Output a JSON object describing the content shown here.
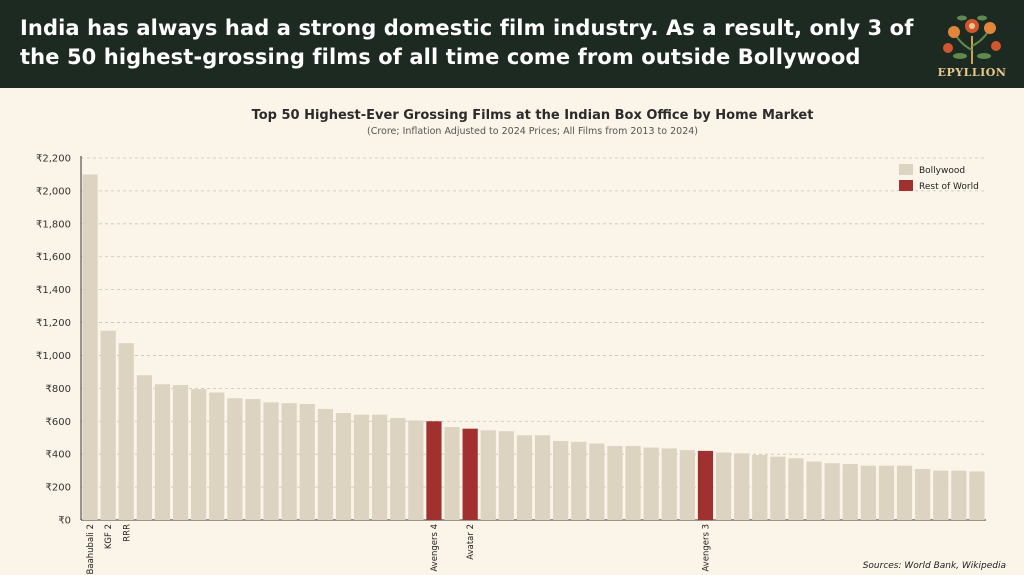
{
  "header": {
    "headline": "India has always had a strong domestic film industry. As a result, only 3 of the 50 highest-grossing films of all time come from outside Bollywood",
    "brand": "EPYLLION",
    "logo_icon": "floral-tree-icon"
  },
  "source": "Sources: World Bank, Wikipedia",
  "colors": {
    "bollywood": "#ddd3c1",
    "rest_of_world": "#a0312f",
    "header_bg": "#1d2a22"
  },
  "chart_data": {
    "type": "bar",
    "title": "Top 50 Highest-Ever Grossing Films at the Indian Box Office by Home Market",
    "subtitle": "(Crore; Inflation Adjusted to 2024 Prices; All Films from 2013 to 2024)",
    "ylim": [
      0,
      2200
    ],
    "yticks": [
      "₹0",
      "₹200",
      "₹400",
      "₹600",
      "₹800",
      "₹1,000",
      "₹1,200",
      "₹1,400",
      "₹1,600",
      "₹1,800",
      "₹2,000",
      "₹2,200"
    ],
    "grid": true,
    "legend_position": "top-right",
    "legend": [
      "Bollywood",
      "Rest of World"
    ],
    "values": [
      2100,
      1150,
      1075,
      880,
      825,
      820,
      795,
      775,
      740,
      735,
      715,
      710,
      705,
      675,
      650,
      640,
      640,
      620,
      605,
      600,
      565,
      555,
      545,
      540,
      515,
      515,
      480,
      475,
      465,
      450,
      450,
      440,
      435,
      425,
      420,
      410,
      405,
      395,
      385,
      375,
      355,
      345,
      340,
      330,
      330,
      330,
      310,
      300,
      300,
      295
    ],
    "groups": [
      0,
      0,
      0,
      0,
      0,
      0,
      0,
      0,
      0,
      0,
      0,
      0,
      0,
      0,
      0,
      0,
      0,
      0,
      0,
      1,
      0,
      1,
      0,
      0,
      0,
      0,
      0,
      0,
      0,
      0,
      0,
      0,
      0,
      0,
      1,
      0,
      0,
      0,
      0,
      0,
      0,
      0,
      0,
      0,
      0,
      0,
      0,
      0,
      0,
      0
    ],
    "labels": [
      "Baahubali 2",
      "KGF 2",
      "RRR",
      "",
      "",
      "",
      "",
      "",
      "",
      "",
      "",
      "",
      "",
      "",
      "",
      "",
      "",
      "",
      "",
      "Avengers 4",
      "",
      "Avatar 2",
      "",
      "",
      "",
      "",
      "",
      "",
      "",
      "",
      "",
      "",
      "",
      "",
      "Avengers 3",
      "",
      "",
      "",
      "",
      "",
      "",
      "",
      "",
      "",
      "",
      "",
      "",
      "",
      "",
      ""
    ]
  }
}
